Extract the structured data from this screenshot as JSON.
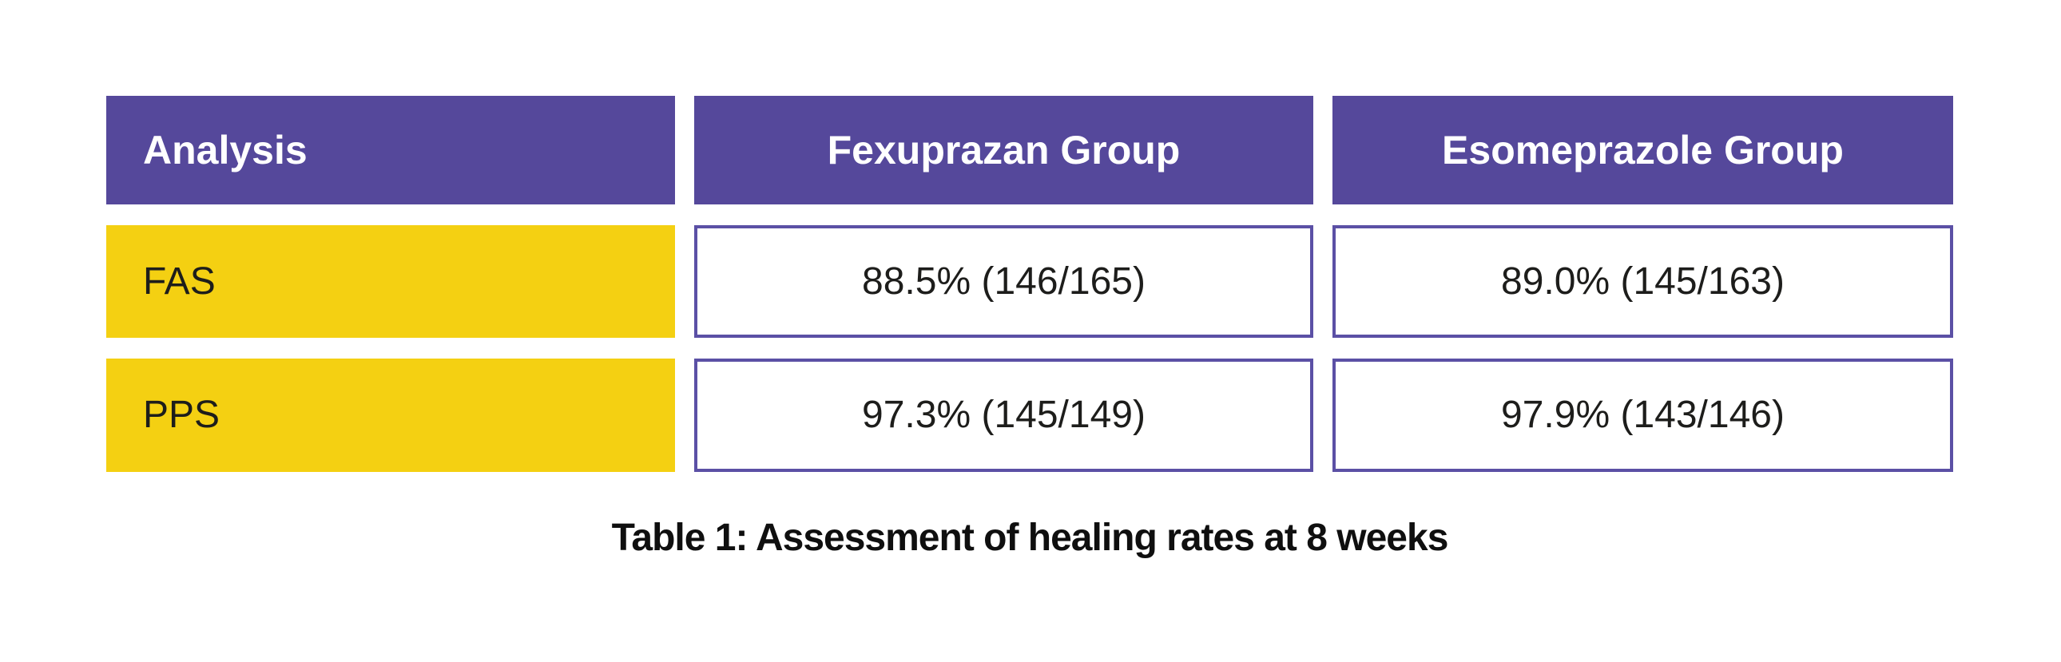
{
  "table": {
    "columns": [
      "Analysis",
      "Fexuprazan Group",
      "Esomeprazole Group"
    ],
    "rows": [
      {
        "label": "FAS",
        "values": [
          "88.5% (146/165)",
          "89.0% (145/163)"
        ]
      },
      {
        "label": "PPS",
        "values": [
          "97.3% (145/149)",
          "97.9% (143/146)"
        ]
      }
    ],
    "caption": "Table 1: Assessment of healing rates at 8 weeks"
  },
  "colors": {
    "header_bg": "#55489B",
    "header_text": "#ffffff",
    "row_label_bg": "#F4D012",
    "value_cell_border": "#5B50A5",
    "body_text": "#1d1d1b",
    "caption_text": "#0f0f0f",
    "page_bg": "#ffffff"
  },
  "chart_data": {
    "type": "table",
    "title": "Table 1: Assessment of healing rates at 8 weeks",
    "columns": [
      "Analysis",
      "Fexuprazan Group",
      "Esomeprazole Group"
    ],
    "rows": [
      [
        "FAS",
        "88.5% (146/165)",
        "89.0% (145/163)"
      ],
      [
        "PPS",
        "97.3% (145/149)",
        "97.9% (143/146)"
      ]
    ],
    "series": [
      {
        "name": "Fexuprazan Group",
        "categories": [
          "FAS",
          "PPS"
        ],
        "healing_rate_pct": [
          88.5,
          97.3
        ],
        "healed": [
          146,
          145
        ],
        "total": [
          165,
          149
        ]
      },
      {
        "name": "Esomeprazole Group",
        "categories": [
          "FAS",
          "PPS"
        ],
        "healing_rate_pct": [
          89.0,
          97.9
        ],
        "healed": [
          145,
          143
        ],
        "total": [
          163,
          146
        ]
      }
    ]
  }
}
